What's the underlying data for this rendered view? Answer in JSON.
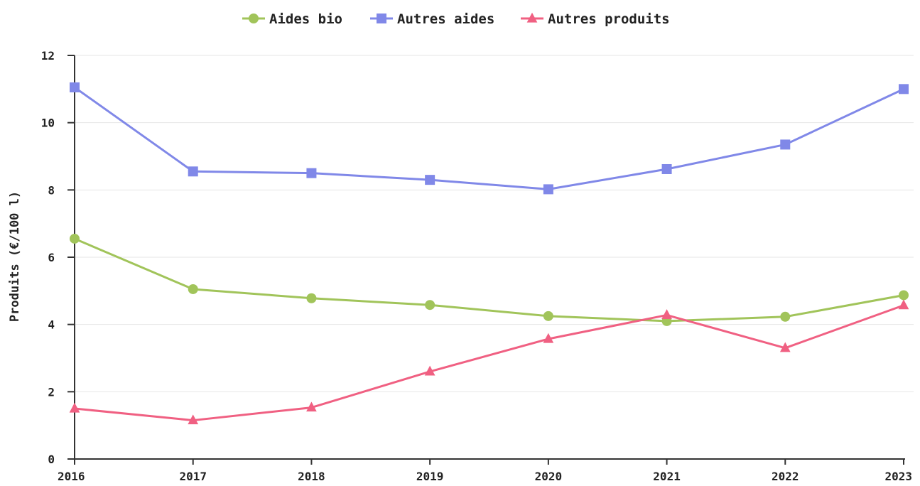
{
  "chart_data": {
    "type": "line",
    "title": "",
    "xlabel": "",
    "ylabel": "Produits (€/100 l)",
    "x": [
      "2016",
      "2017",
      "2018",
      "2019",
      "2020",
      "2021",
      "2022",
      "2023"
    ],
    "ylim": [
      0,
      12
    ],
    "yticks": [
      0,
      2,
      4,
      6,
      8,
      10,
      12
    ],
    "grid": "horizontal",
    "legend_position": "top-center",
    "series": [
      {
        "name": "Aides bio",
        "color": "#a1c45a",
        "marker": "circle",
        "values": [
          6.55,
          5.05,
          4.78,
          4.58,
          4.25,
          4.1,
          4.23,
          4.87
        ]
      },
      {
        "name": "Autres aides",
        "color": "#8088e8",
        "marker": "square",
        "values": [
          11.05,
          8.55,
          8.5,
          8.3,
          8.02,
          8.62,
          9.35,
          11.0
        ]
      },
      {
        "name": "Autres produits",
        "color": "#f06082",
        "marker": "triangle",
        "values": [
          1.5,
          1.15,
          1.53,
          2.6,
          3.57,
          4.28,
          3.3,
          4.57
        ]
      }
    ]
  }
}
